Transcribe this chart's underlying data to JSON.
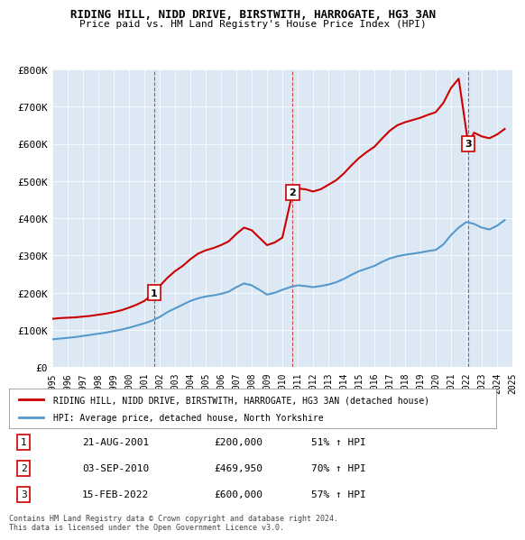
{
  "title": "RIDING HILL, NIDD DRIVE, BIRSTWITH, HARROGATE, HG3 3AN",
  "subtitle": "Price paid vs. HM Land Registry's House Price Index (HPI)",
  "legend_red": "RIDING HILL, NIDD DRIVE, BIRSTWITH, HARROGATE, HG3 3AN (detached house)",
  "legend_blue": "HPI: Average price, detached house, North Yorkshire",
  "footnote": "Contains HM Land Registry data © Crown copyright and database right 2024.\nThis data is licensed under the Open Government Licence v3.0.",
  "sales": [
    {
      "num": 1,
      "date": "21-AUG-2001",
      "price": 200000,
      "pct": "51%",
      "x": 2001.64
    },
    {
      "num": 2,
      "date": "03-SEP-2010",
      "price": 469950,
      "pct": "70%",
      "x": 2010.67
    },
    {
      "num": 3,
      "date": "15-FEB-2022",
      "price": 600000,
      "pct": "57%",
      "x": 2022.12
    }
  ],
  "hpi_x": [
    1995,
    1995.5,
    1996,
    1996.5,
    1997,
    1997.5,
    1998,
    1998.5,
    1999,
    1999.5,
    2000,
    2000.5,
    2001,
    2001.5,
    2002,
    2002.5,
    2003,
    2003.5,
    2004,
    2004.5,
    2005,
    2005.5,
    2006,
    2006.5,
    2007,
    2007.5,
    2008,
    2008.5,
    2009,
    2009.5,
    2010,
    2010.5,
    2011,
    2011.5,
    2012,
    2012.5,
    2013,
    2013.5,
    2014,
    2014.5,
    2015,
    2015.5,
    2016,
    2016.5,
    2017,
    2017.5,
    2018,
    2018.5,
    2019,
    2019.5,
    2020,
    2020.5,
    2021,
    2021.5,
    2022,
    2022.5,
    2023,
    2023.5,
    2024,
    2024.5
  ],
  "hpi_y": [
    75000,
    77000,
    79000,
    81000,
    84000,
    87000,
    90000,
    93000,
    97000,
    101000,
    106000,
    112000,
    118000,
    125000,
    135000,
    148000,
    158000,
    168000,
    178000,
    185000,
    190000,
    193000,
    197000,
    203000,
    215000,
    225000,
    220000,
    208000,
    195000,
    200000,
    208000,
    215000,
    220000,
    218000,
    215000,
    218000,
    222000,
    228000,
    237000,
    248000,
    258000,
    265000,
    272000,
    283000,
    292000,
    298000,
    302000,
    305000,
    308000,
    312000,
    315000,
    330000,
    355000,
    375000,
    390000,
    385000,
    375000,
    370000,
    380000,
    395000
  ],
  "red_x": [
    1995,
    1995.5,
    1996,
    1996.5,
    1997,
    1997.5,
    1998,
    1998.5,
    1999,
    1999.5,
    2000,
    2000.5,
    2001,
    2001.64,
    2002,
    2002.5,
    2003,
    2003.5,
    2004,
    2004.5,
    2005,
    2005.5,
    2006,
    2006.5,
    2007,
    2007.5,
    2008,
    2008.5,
    2009,
    2009.5,
    2010,
    2010.67,
    2011,
    2011.5,
    2012,
    2012.5,
    2013,
    2013.5,
    2014,
    2014.5,
    2015,
    2015.5,
    2016,
    2016.5,
    2017,
    2017.5,
    2018,
    2018.5,
    2019,
    2019.5,
    2020,
    2020.5,
    2021,
    2021.5,
    2022.12,
    2022.5,
    2023,
    2023.5,
    2024,
    2024.5
  ],
  "red_y": [
    130000,
    132000,
    133000,
    134000,
    136000,
    138000,
    141000,
    144000,
    148000,
    153000,
    160000,
    168000,
    178000,
    200000,
    218000,
    240000,
    258000,
    272000,
    290000,
    305000,
    314000,
    320000,
    328000,
    338000,
    358000,
    375000,
    368000,
    348000,
    328000,
    335000,
    348000,
    469950,
    480000,
    478000,
    472000,
    478000,
    490000,
    502000,
    520000,
    542000,
    562000,
    578000,
    592000,
    614000,
    635000,
    650000,
    658000,
    664000,
    670000,
    678000,
    685000,
    710000,
    750000,
    775000,
    600000,
    630000,
    620000,
    615000,
    625000,
    640000
  ],
  "vline_color": "#cc0000",
  "vline_style": "--",
  "bg_color": "#dce9f5",
  "plot_bg": "#dce9f5",
  "red_color": "#cc0000",
  "blue_color": "#5599cc",
  "ylim": [
    0,
    800000
  ],
  "xlim": [
    1995,
    2025
  ],
  "yticks": [
    0,
    100000,
    200000,
    300000,
    400000,
    500000,
    600000,
    700000,
    800000
  ],
  "ytick_labels": [
    "£0",
    "£100K",
    "£200K",
    "£300K",
    "£400K",
    "£500K",
    "£600K",
    "£700K",
    "£800K"
  ],
  "xticks": [
    1995,
    1996,
    1997,
    1998,
    1999,
    2000,
    2001,
    2002,
    2003,
    2004,
    2005,
    2006,
    2007,
    2008,
    2009,
    2010,
    2011,
    2012,
    2013,
    2014,
    2015,
    2016,
    2017,
    2018,
    2019,
    2020,
    2021,
    2022,
    2023,
    2024,
    2025
  ],
  "table_rows": [
    [
      1,
      "21-AUG-2001",
      "£200,000",
      "51% ↑ HPI"
    ],
    [
      2,
      "03-SEP-2010",
      "£469,950",
      "70% ↑ HPI"
    ],
    [
      3,
      "15-FEB-2022",
      "£600,000",
      "57% ↑ HPI"
    ]
  ]
}
